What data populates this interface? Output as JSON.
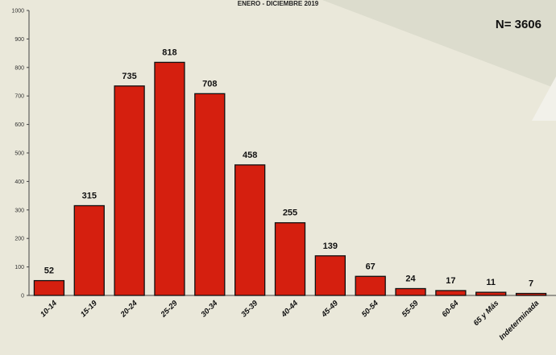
{
  "chart_data": {
    "type": "bar",
    "title": "ENERO - DICIEMBRE 2019",
    "annotation": "N= 3606",
    "categories": [
      "10-14",
      "15-19",
      "20-24",
      "25-29",
      "30-34",
      "35-39",
      "40-44",
      "45-49",
      "50-54",
      "55-59",
      "60-64",
      "65 y Más",
      "Indeterminada"
    ],
    "values": [
      52,
      315,
      735,
      818,
      708,
      458,
      255,
      139,
      67,
      24,
      17,
      11,
      7
    ],
    "ylim": [
      0,
      1000
    ],
    "yticks": [
      0,
      100,
      200,
      300,
      400,
      500,
      600,
      700,
      800,
      900,
      1000
    ],
    "bar_color": "#d51f0f",
    "grid": false,
    "legend": "none"
  }
}
